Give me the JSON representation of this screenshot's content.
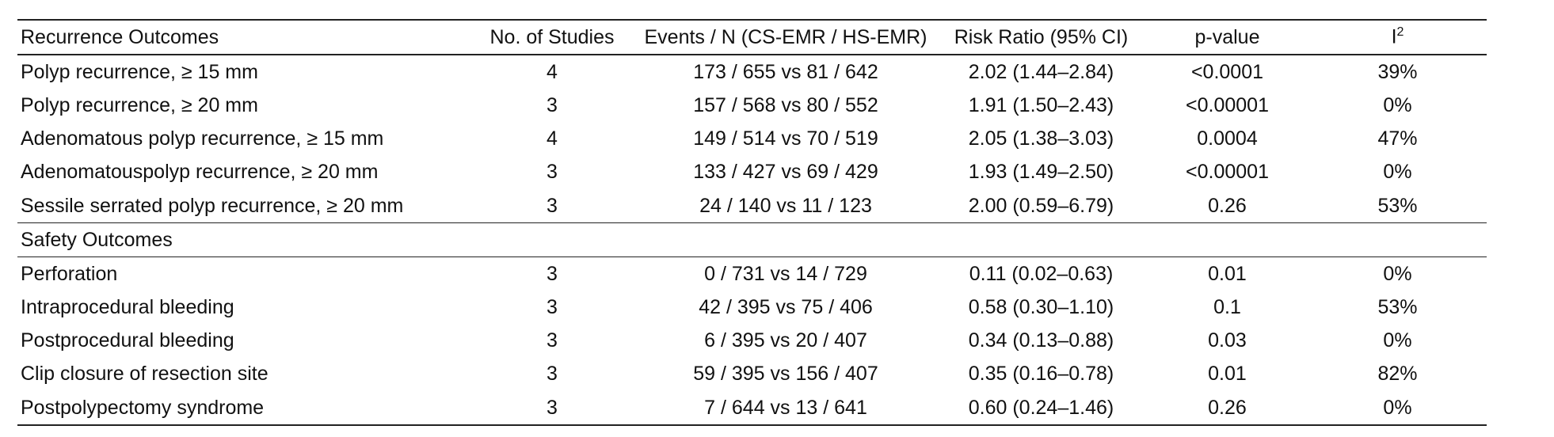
{
  "headers": [
    "Recurrence Outcomes",
    "No. of Studies",
    "Events / N (CS-EMR / HS-EMR)",
    "Risk Ratio (95% CI)",
    "p-value",
    "I",
    "2"
  ],
  "recurrence_rows": [
    [
      "Polyp recurrence, ≥ 15 mm",
      "4",
      "173 / 655 vs 81 / 642",
      "2.02 (1.44–2.84)",
      "<0.0001",
      "39%"
    ],
    [
      "Polyp recurrence, ≥ 20 mm",
      "3",
      "157 / 568 vs 80 / 552",
      "1.91 (1.50–2.43)",
      "<0.00001",
      "0%"
    ],
    [
      "Adenomatous polyp recurrence, ≥ 15 mm",
      "4",
      "149 / 514 vs 70 / 519",
      "2.05 (1.38–3.03)",
      "0.0004",
      "47%"
    ],
    [
      "Adenomatouspolyp recurrence, ≥ 20 mm",
      "3",
      "133 / 427 vs 69 / 429",
      "1.93 (1.49–2.50)",
      "<0.00001",
      "0%"
    ],
    [
      "Sessile serrated polyp recurrence, ≥ 20 mm",
      "3",
      "24 / 140 vs 11 / 123",
      "2.00 (0.59–6.79)",
      "0.26",
      "53%"
    ]
  ],
  "safety_label": "Safety Outcomes",
  "safety_rows": [
    [
      "Perforation",
      "3",
      "0 / 731 vs 14 / 729",
      "0.11 (0.02–0.63)",
      "0.01",
      "0%"
    ],
    [
      "Intraprocedural bleeding",
      "3",
      "42 / 395 vs 75 / 406",
      "0.58 (0.30–1.10)",
      "0.1",
      "53%"
    ],
    [
      "Postprocedural bleeding",
      "3",
      "6 / 395 vs 20 / 407",
      "0.34 (0.13–0.88)",
      "0.03",
      "0%"
    ],
    [
      "Clip closure of resection site",
      "3",
      "59 / 395 vs 156 / 407",
      "0.35 (0.16–0.78)",
      "0.01",
      "82%"
    ],
    [
      "Postpolypectomy syndrome",
      "3",
      "7 / 644 vs 13 / 641",
      "0.60 (0.24–1.46)",
      "0.26",
      "0%"
    ]
  ]
}
